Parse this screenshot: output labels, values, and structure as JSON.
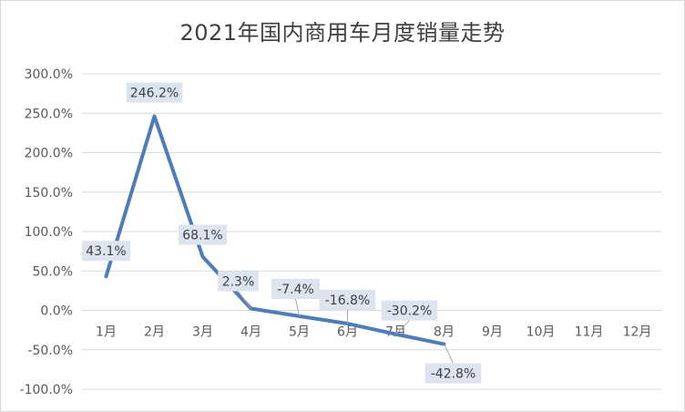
{
  "chart_data": {
    "type": "line",
    "title": "2021年国内商用车月度销量走势",
    "xlabel": "",
    "ylabel": "",
    "categories": [
      "1月",
      "2月",
      "3月",
      "4月",
      "5月",
      "6月",
      "7月",
      "8月",
      "9月",
      "10月",
      "11月",
      "12月"
    ],
    "series": [
      {
        "values": [
          43.1,
          246.2,
          68.1,
          2.3,
          -7.4,
          -16.8,
          -30.2,
          -42.8,
          null,
          null,
          null,
          null
        ]
      }
    ],
    "data_labels": [
      "43.1%",
      "246.2%",
      "68.1%",
      "2.3%",
      "-7.4%",
      "-16.8%",
      "-30.2%",
      "-42.8%"
    ],
    "ylim": [
      -100,
      300
    ],
    "yticks": [
      "300.0%",
      "250.0%",
      "200.0%",
      "150.0%",
      "100.0%",
      "50.0%",
      "0.0%",
      "-50.0%",
      "-100.0%"
    ],
    "ytick_values": [
      300,
      250,
      200,
      150,
      100,
      50,
      0,
      -50,
      -100
    ],
    "grid": true,
    "legend": "none",
    "colors": {
      "line": "#4f7cb8",
      "label_bg": "#dbe4ef",
      "grid": "#d9d9d9",
      "leader": "#a6a6a6"
    }
  }
}
